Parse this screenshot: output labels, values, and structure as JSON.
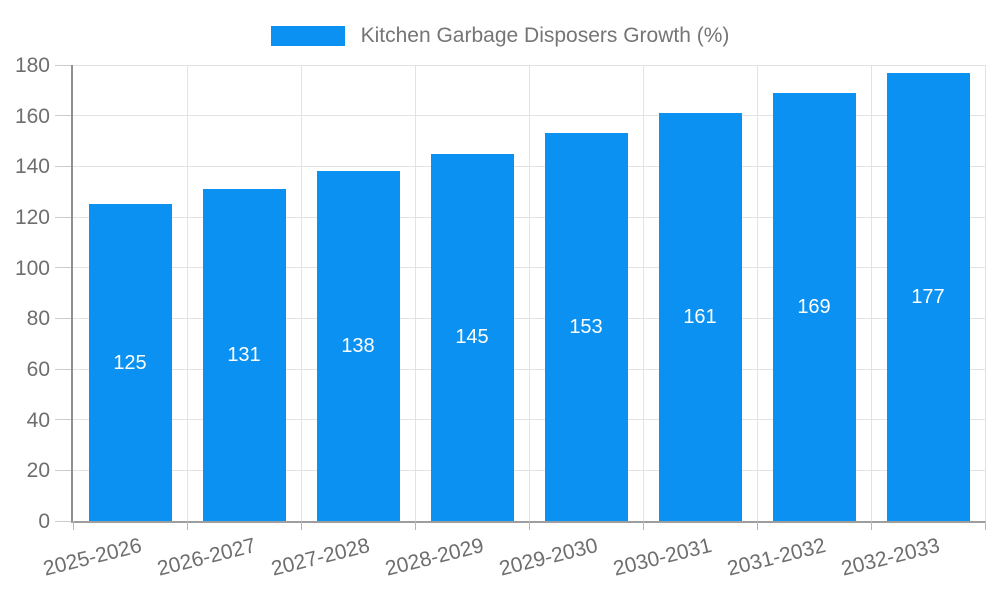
{
  "legend": {
    "label": "Kitchen Garbage Disposers Growth (%)"
  },
  "chart_data": {
    "type": "bar",
    "title": "Kitchen Garbage Disposers Growth (%)",
    "categories": [
      "2025-2026",
      "2026-2027",
      "2027-2028",
      "2028-2029",
      "2029-2030",
      "2030-2031",
      "2031-2032",
      "2032-2033"
    ],
    "values": [
      125,
      131,
      138,
      145,
      153,
      161,
      169,
      177
    ],
    "value_labels": [
      "125",
      "131",
      "138",
      "145",
      "153",
      "161",
      "169",
      "177"
    ],
    "xlabel": "",
    "ylabel": "",
    "ylim": [
      0,
      180
    ],
    "ytick_step": 20,
    "yticks": [
      0,
      20,
      40,
      60,
      80,
      100,
      120,
      140,
      160,
      180
    ],
    "grid": true,
    "legend_position": "top",
    "x_label_rotation_deg": -14
  },
  "colors": {
    "bar": "#0A91F2",
    "grid": "#E3E3E3",
    "axis_y": "#8F8F8F",
    "axis_x": "#9E9E9E",
    "tick": "#CCCCCC",
    "axis_label_text": "#6E6E6E",
    "legend_text": "#757575",
    "value_label_text": "#FFFFFF",
    "background": "#FFFFFF"
  }
}
